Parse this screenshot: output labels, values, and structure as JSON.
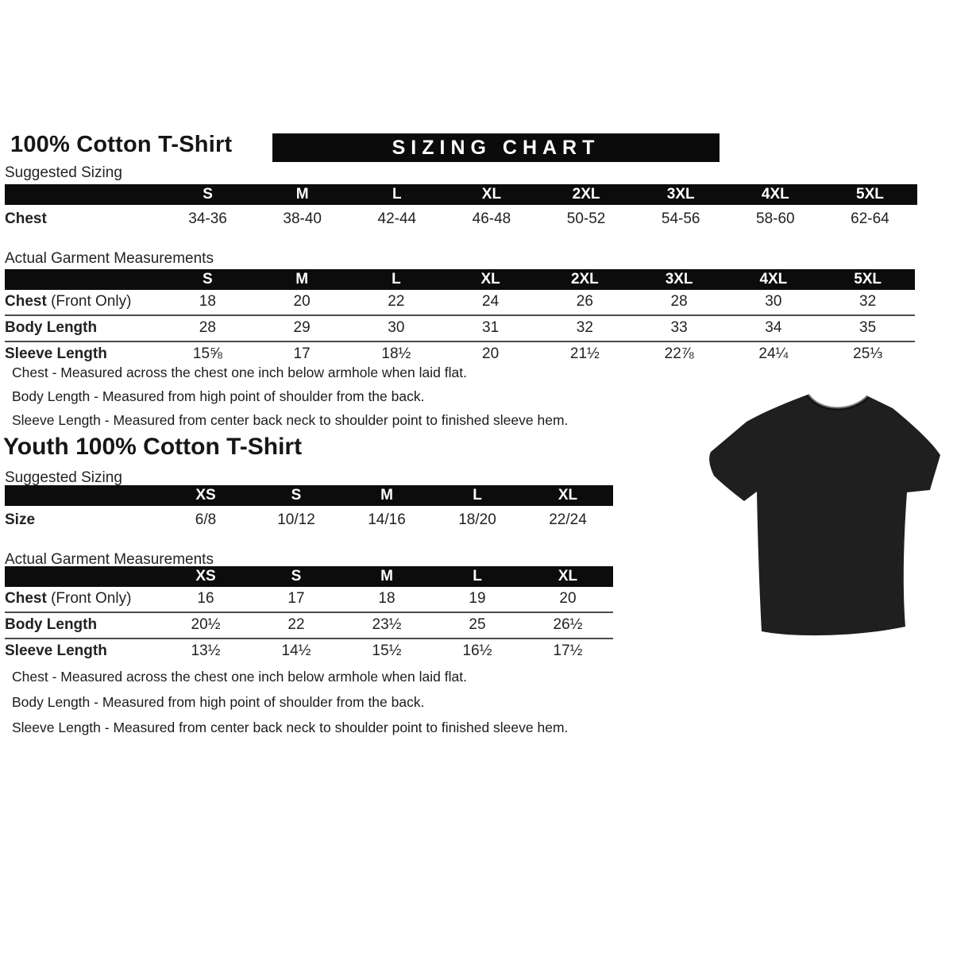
{
  "title": "100% Cotton T-Shirt",
  "banner": {
    "text": "SIZING CHART",
    "bg": "#0b0b0b",
    "fg": "#ffffff"
  },
  "youth_title": "Youth 100% Cotton T-Shirt",
  "labels": {
    "suggested": "Suggested Sizing",
    "actual": "Actual Garment Measurements"
  },
  "notes": [
    "Chest - Measured across the chest one inch below armhole when laid flat.",
    "Body Length - Measured from high point of shoulder from the back.",
    "Sleeve Length - Measured from center back neck to shoulder point to finished sleeve hem."
  ],
  "adult": {
    "suggested": {
      "headers": [
        "S",
        "M",
        "L",
        "XL",
        "2XL",
        "3XL",
        "4XL",
        "5XL"
      ],
      "rows": [
        {
          "label": "Chest",
          "suffix": "",
          "values": [
            "34-36",
            "38-40",
            "42-44",
            "46-48",
            "50-52",
            "54-56",
            "58-60",
            "62-64"
          ]
        }
      ]
    },
    "measurements": {
      "headers": [
        "S",
        "M",
        "L",
        "XL",
        "2XL",
        "3XL",
        "4XL",
        "5XL"
      ],
      "rows": [
        {
          "label": "Chest",
          "suffix": " (Front Only)",
          "values": [
            "18",
            "20",
            "22",
            "24",
            "26",
            "28",
            "30",
            "32"
          ]
        },
        {
          "label": "Body Length",
          "suffix": "",
          "values": [
            "28",
            "29",
            "30",
            "31",
            "32",
            "33",
            "34",
            "35"
          ]
        },
        {
          "label": "Sleeve Length",
          "suffix": "",
          "values": [
            "15⅝",
            "17",
            "18½",
            "20",
            "21½",
            "22⅞",
            "24¼",
            "25⅓"
          ]
        }
      ]
    }
  },
  "youth": {
    "suggested": {
      "headers": [
        "XS",
        "S",
        "M",
        "L",
        "XL"
      ],
      "rows": [
        {
          "label": "Size",
          "suffix": "",
          "values": [
            "6/8",
            "10/12",
            "14/16",
            "18/20",
            "22/24"
          ]
        }
      ]
    },
    "measurements": {
      "headers": [
        "XS",
        "S",
        "M",
        "L",
        "XL"
      ],
      "rows": [
        {
          "label": "Chest",
          "suffix": " (Front Only)",
          "values": [
            "16",
            "17",
            "18",
            "19",
            "20"
          ]
        },
        {
          "label": "Body Length",
          "suffix": "",
          "values": [
            "20½",
            "22",
            "23½",
            "25",
            "26½"
          ]
        },
        {
          "label": "Sleeve Length",
          "suffix": "",
          "values": [
            "13½",
            "14½",
            "15½",
            "16½",
            "17½"
          ]
        }
      ]
    }
  },
  "product_image": {
    "description": "black short-sleeve crew neck t-shirt",
    "color": "#1f1f1f"
  }
}
